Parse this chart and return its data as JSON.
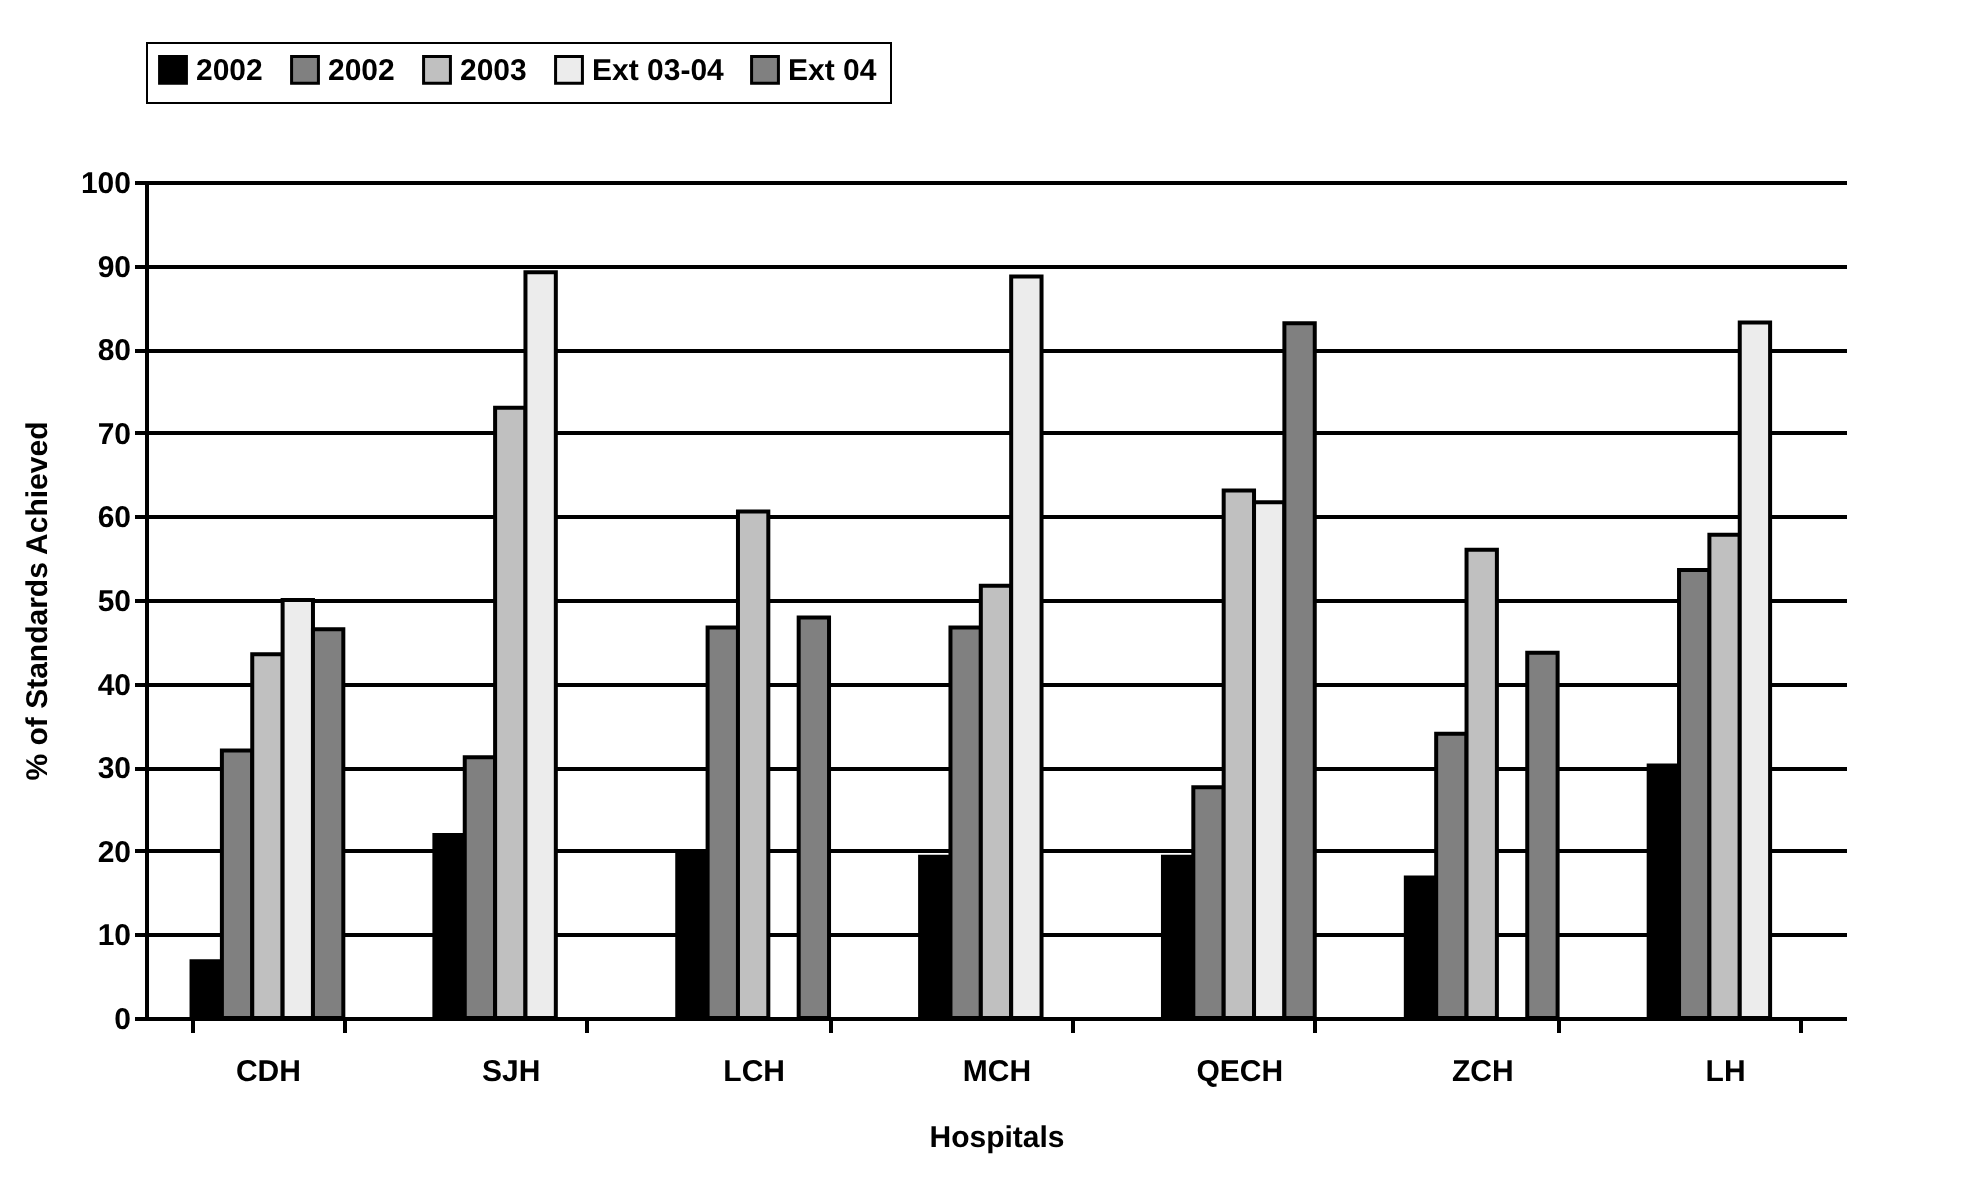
{
  "chart_data": {
    "type": "bar",
    "xlabel": "Hospitals",
    "ylabel": "% of Standards Achieved",
    "categories": [
      "CDH",
      "SJH",
      "LCH",
      "MCH",
      "QECH",
      "ZCH",
      "LH"
    ],
    "series": [
      {
        "name": "2002",
        "color": "#000000",
        "values": [
          6.8,
          21.9,
          19.7,
          19.3,
          19.3,
          16.8,
          30.2
        ]
      },
      {
        "name": "2002",
        "color": "#808080",
        "values": [
          32,
          31.2,
          46.7,
          46.7,
          27.6,
          34,
          53.6
        ]
      },
      {
        "name": "2003",
        "color": "#c0c0c0",
        "values": [
          43.5,
          73,
          60.6,
          51.7,
          63.1,
          56,
          57.8
        ]
      },
      {
        "name": "Ext 03-04",
        "color": "#ececec",
        "values": [
          50,
          89.2,
          null,
          88.7,
          61.7,
          null,
          83.2
        ]
      },
      {
        "name": "Ext 04",
        "color": "#808080",
        "values": [
          46.5,
          null,
          47.9,
          null,
          83.1,
          43.7,
          null
        ]
      }
    ],
    "ylim": [
      0,
      100
    ],
    "yticks": [
      0,
      10,
      20,
      30,
      40,
      50,
      60,
      70,
      80,
      90,
      100
    ],
    "grid": "y",
    "legend": "top"
  }
}
